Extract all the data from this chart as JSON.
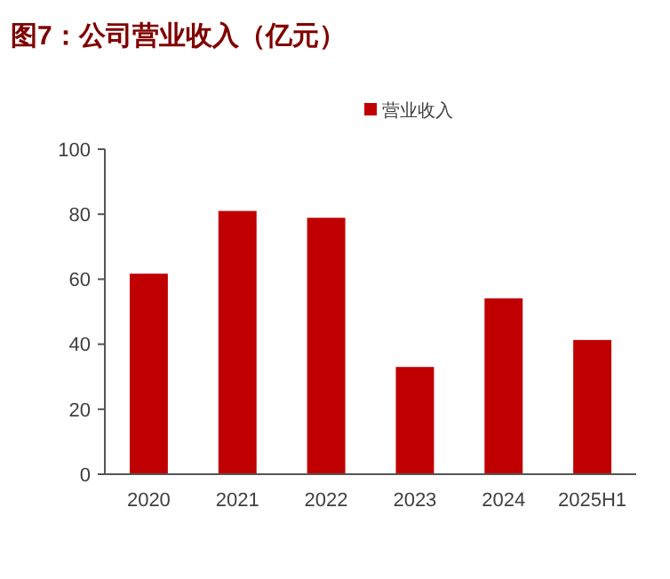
{
  "chart_data": {
    "type": "bar",
    "title": "图7：公司营业收入（亿元）",
    "categories": [
      "2020",
      "2021",
      "2022",
      "2023",
      "2024",
      "2025H1"
    ],
    "series": [
      {
        "name": "营业收入",
        "color": "#c00000",
        "values": [
          61.7,
          81,
          78.9,
          33,
          54.1,
          41.3
        ]
      }
    ],
    "ylim": [
      0,
      100
    ],
    "yticks": [
      0,
      20,
      40,
      60,
      80,
      100
    ],
    "grid": false,
    "legend": "top"
  }
}
